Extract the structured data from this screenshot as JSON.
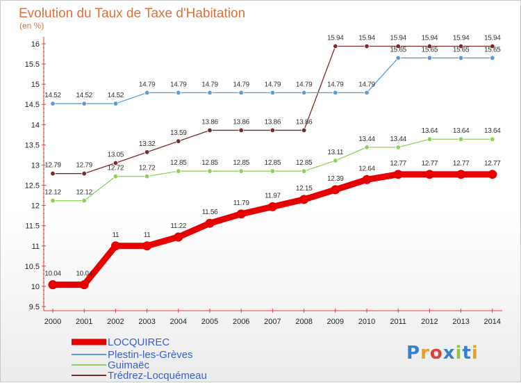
{
  "chart_data": {
    "type": "line",
    "title": "Evolution du Taux de Taxe d'Habitation",
    "ylabel": "(en %)",
    "x": [
      "2000",
      "2001",
      "2002",
      "2003",
      "2004",
      "2005",
      "2006",
      "2007",
      "2008",
      "2009",
      "2010",
      "2011",
      "2012",
      "2013",
      "2014"
    ],
    "yticks": [
      "9.5",
      "10",
      "10.5",
      "11",
      "11.5",
      "12",
      "12.5",
      "13",
      "13.5",
      "14",
      "14.5",
      "15",
      "15.5",
      "16"
    ],
    "ylim": [
      9.5,
      16
    ],
    "grid": false,
    "legend_position": "bottom-left",
    "series": [
      {
        "name": "LOCQUIREC",
        "color": "#e60000",
        "values": [
          10.04,
          10.04,
          11,
          11,
          11.22,
          11.56,
          11.79,
          11.97,
          12.15,
          12.39,
          12.64,
          12.77,
          12.77,
          12.77,
          12.77
        ],
        "labels": [
          "10.04",
          "10.04",
          "11",
          "11",
          "11.22",
          "11.56",
          "11.79",
          "11.97",
          "12.15",
          "12.39",
          "12.64",
          "12.77",
          "12.77",
          "12.77",
          "12.77"
        ]
      },
      {
        "name": "Plestin-les-Grèves",
        "color": "#5b9bd5",
        "values": [
          14.52,
          14.52,
          14.52,
          14.79,
          14.79,
          14.79,
          14.79,
          14.79,
          14.79,
          14.79,
          14.79,
          15.65,
          15.65,
          15.65,
          15.65
        ],
        "labels": [
          "14.52",
          "14.52",
          "14.52",
          "14.79",
          "14.79",
          "14.79",
          "14.79",
          "14.79",
          "14.79",
          "14.79",
          "14.79",
          "15.65",
          "15.65",
          "15.65",
          "15.65"
        ]
      },
      {
        "name": "Guimaëc",
        "color": "#8ed15a",
        "values": [
          12.12,
          12.12,
          12.72,
          12.72,
          12.85,
          12.85,
          12.85,
          12.85,
          12.85,
          13.11,
          13.44,
          13.44,
          13.64,
          13.64,
          13.64
        ],
        "labels": [
          "12.12",
          "12.12",
          "12.72",
          "12.72",
          "12.85",
          "12.85",
          "12.85",
          "12.85",
          "12.85",
          "13.11",
          "13.44",
          "13.44",
          "13.64",
          "13.64",
          "13.64"
        ]
      },
      {
        "name": "Trédrez-Locquémeau",
        "color": "#7a2a2a",
        "values": [
          12.79,
          12.79,
          13.05,
          13.32,
          13.59,
          13.86,
          13.86,
          13.86,
          13.86,
          15.94,
          15.94,
          15.94,
          15.94,
          15.94,
          15.94
        ],
        "labels": [
          "12.79",
          "12.79",
          "13.05",
          "13.32",
          "13.59",
          "13.86",
          "13.86",
          "13.86",
          "13.86",
          "15.94",
          "15.94",
          "15.94",
          "15.94",
          "15.94",
          "15.94"
        ]
      }
    ]
  },
  "logo": {
    "text": "Proxiti",
    "colors": [
      "#3a7fd0",
      "#e8a020",
      "#e0403a",
      "#3a7fd0",
      "#8ec63f",
      "#3a7fd0",
      "#e8a020"
    ]
  }
}
